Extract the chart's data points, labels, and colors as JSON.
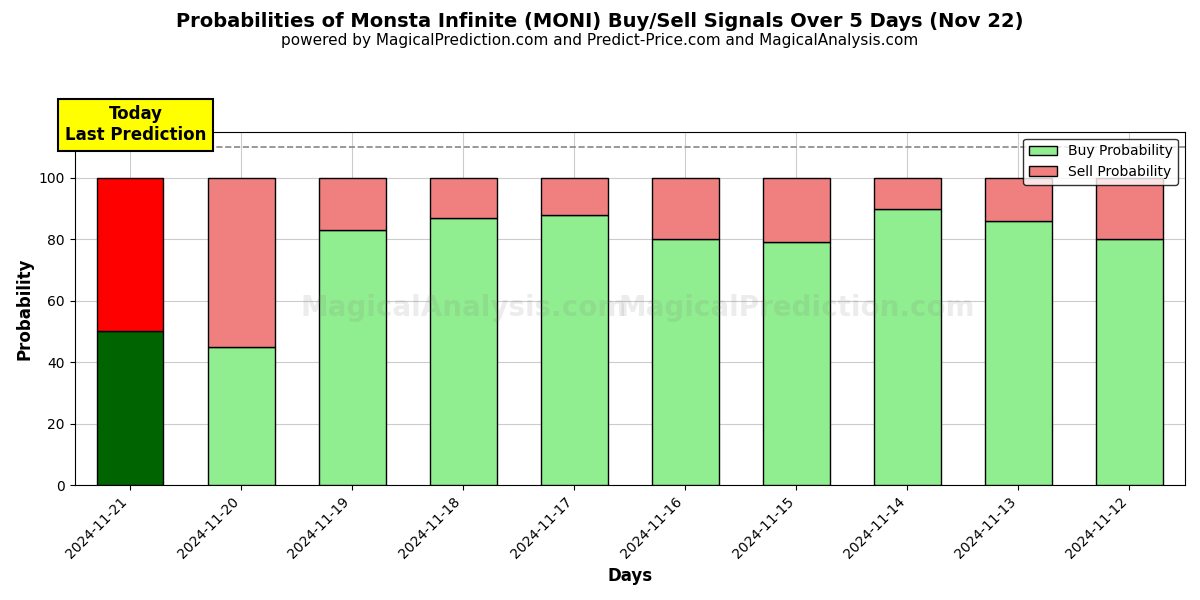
{
  "title": "Probabilities of Monsta Infinite (MONI) Buy/Sell Signals Over 5 Days (Nov 22)",
  "subtitle": "powered by MagicalPrediction.com and Predict-Price.com and MagicalAnalysis.com",
  "xlabel": "Days",
  "ylabel": "Probability",
  "days": [
    "2024-11-21",
    "2024-11-20",
    "2024-11-19",
    "2024-11-18",
    "2024-11-17",
    "2024-11-16",
    "2024-11-15",
    "2024-11-14",
    "2024-11-13",
    "2024-11-12"
  ],
  "buy_values": [
    50,
    45,
    83,
    87,
    88,
    80,
    79,
    90,
    86,
    80
  ],
  "sell_values": [
    50,
    55,
    17,
    13,
    12,
    20,
    21,
    10,
    14,
    20
  ],
  "today_buy_color": "#006400",
  "today_sell_color": "#FF0000",
  "other_buy_color": "#90EE90",
  "other_sell_color": "#F08080",
  "bar_edge_color": "black",
  "bar_linewidth": 1.0,
  "ylim": [
    0,
    115
  ],
  "yticks": [
    0,
    20,
    40,
    60,
    80,
    100
  ],
  "dashed_line_y": 110,
  "dashed_line_color": "#888888",
  "grid_color": "#cccccc",
  "background_color": "#ffffff",
  "today_label_text": "Today\nLast Prediction",
  "today_label_bg": "#FFFF00",
  "legend_buy_label": "Buy Probability",
  "legend_sell_label": "Sell Probability",
  "watermark_text1": "MagicalAnalysis.com",
  "watermark_text2": "MagicalPrediction.com",
  "title_fontsize": 14,
  "subtitle_fontsize": 11,
  "axis_label_fontsize": 12,
  "tick_fontsize": 10,
  "legend_fontsize": 10
}
